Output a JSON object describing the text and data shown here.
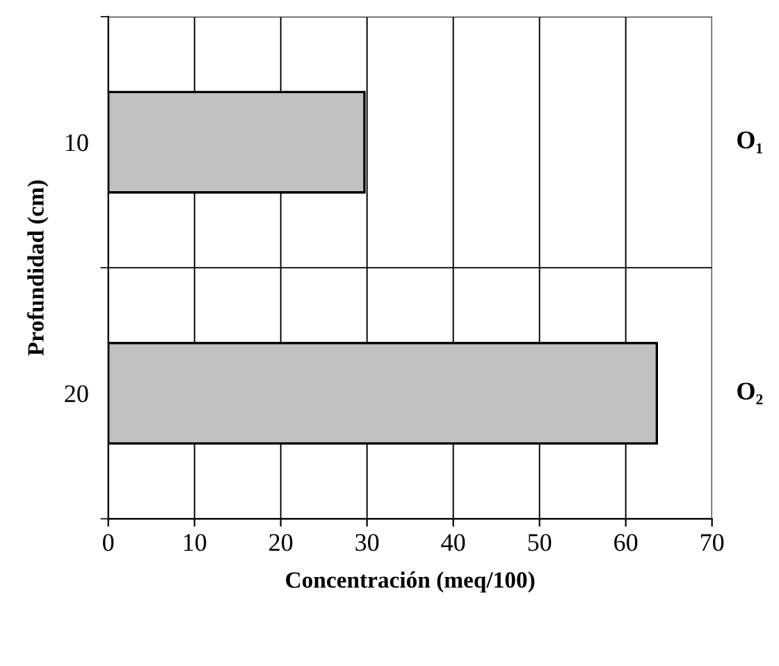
{
  "chart_data": {
    "type": "bar",
    "orientation": "horizontal",
    "xlabel": "Concentración (meq/100)",
    "ylabel": "Profundidad (cm)",
    "categories": [
      "10",
      "20"
    ],
    "series": [
      {
        "color": "#c0c0c0",
        "values": [
          29.7,
          63.6
        ]
      }
    ],
    "xlim": [
      0,
      70
    ],
    "xticks": [
      0,
      10,
      20,
      30,
      40,
      50,
      60,
      70
    ],
    "grid": true,
    "annotations": [
      "O₁",
      "O₂"
    ]
  }
}
